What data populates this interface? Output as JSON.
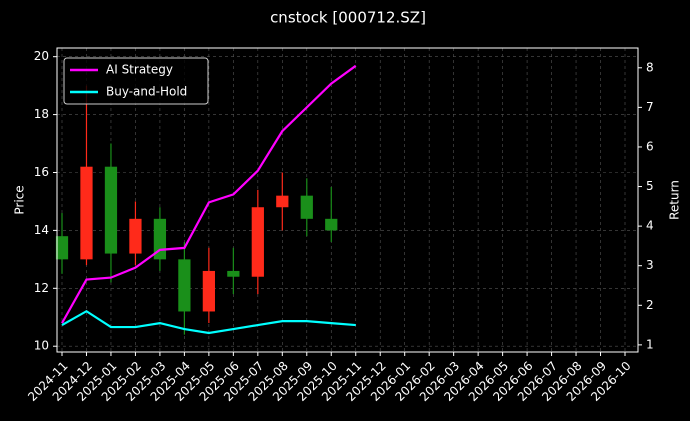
{
  "chart_data": {
    "type": "candlestick",
    "title": "cnstock [000712.SZ]",
    "ylabel": "Price",
    "y2label": "Return",
    "x": [
      "2024-11",
      "2024-12",
      "2025-01",
      "2025-02",
      "2025-03",
      "2025-04",
      "2025-05",
      "2025-06",
      "2025-07",
      "2025-08",
      "2025-09",
      "2025-10",
      "2025-11"
    ],
    "open": [
      13.8,
      13.0,
      16.2,
      13.2,
      14.4,
      13.0,
      11.2,
      12.6,
      12.4,
      14.8,
      15.2,
      14.4,
      null
    ],
    "high": [
      14.6,
      19.0,
      17.0,
      15.0,
      14.8,
      13.6,
      13.4,
      13.4,
      15.4,
      16.0,
      15.8,
      15.5,
      null
    ],
    "low": [
      12.5,
      12.8,
      12.2,
      12.8,
      12.6,
      10.4,
      10.8,
      11.8,
      11.8,
      14.0,
      13.8,
      13.6,
      null
    ],
    "close": [
      13.0,
      16.2,
      13.2,
      14.4,
      13.0,
      11.2,
      12.6,
      12.4,
      14.8,
      15.2,
      14.4,
      14.0,
      null
    ],
    "up_color": "#ff2a1a",
    "down_color": "#1a8f1a",
    "series": [
      {
        "name": "AI Strategy",
        "color": "#ff00ff",
        "axis": "y2",
        "values": [
          1.55,
          2.65,
          2.7,
          2.95,
          3.4,
          3.45,
          4.6,
          4.8,
          5.4,
          6.4,
          7.0,
          7.6,
          8.05
        ]
      },
      {
        "name": "Buy-and-Hold",
        "color": "#00ffff",
        "axis": "y2",
        "values": [
          1.5,
          1.85,
          1.45,
          1.45,
          1.55,
          1.4,
          1.3,
          1.4,
          1.5,
          1.6,
          1.6,
          1.55,
          1.5
        ]
      }
    ],
    "xlim": [
      "2024-11",
      "2026-10"
    ],
    "xticks": [
      "2024-11",
      "2024-12",
      "2025-01",
      "2025-02",
      "2025-03",
      "2025-04",
      "2025-05",
      "2025-06",
      "2025-07",
      "2025-08",
      "2025-09",
      "2025-10",
      "2025-11",
      "2025-12",
      "2026-01",
      "2026-02",
      "2026-03",
      "2026-04",
      "2026-05",
      "2026-06",
      "2026-07",
      "2026-08",
      "2026-09",
      "2026-10"
    ],
    "ylim": [
      9.8,
      20.3
    ],
    "yticks": [
      10,
      12,
      14,
      16,
      18,
      20
    ],
    "y2lim": [
      0.82,
      8.5
    ],
    "y2ticks": [
      1,
      2,
      3,
      4,
      5,
      6,
      7,
      8
    ],
    "grid": true,
    "legend": "upper left"
  }
}
